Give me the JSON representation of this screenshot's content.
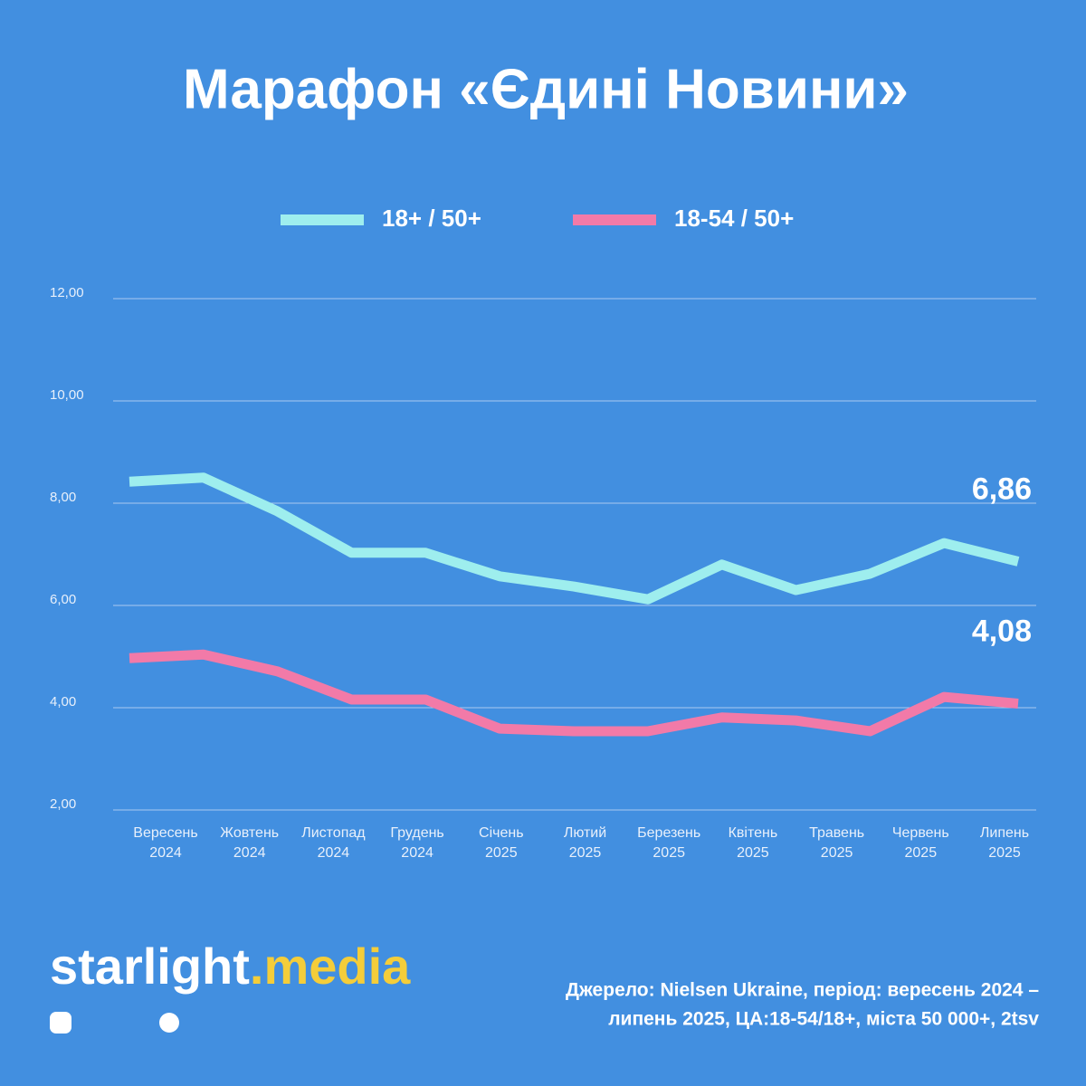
{
  "chart_data": {
    "type": "line",
    "title": "Марафон «Єдині Новини»",
    "categories": [
      [
        "Вересень",
        "2024"
      ],
      [
        "Жовтень",
        "2024"
      ],
      [
        "Листопад",
        "2024"
      ],
      null,
      [
        "Грудень",
        "2024"
      ],
      [
        "Січень",
        "2025"
      ],
      [
        "Лютий",
        "2025"
      ],
      [
        "Березень",
        "2025"
      ],
      [
        "Квітень",
        "2025"
      ],
      null,
      [
        "Травень",
        "2025"
      ],
      [
        "Червень",
        "2025"
      ],
      [
        "Липень",
        "2025"
      ]
    ],
    "series": [
      {
        "name": "18+ / 50+",
        "color": "#9eeeee",
        "values": [
          8.42,
          8.5,
          7.84,
          7.03,
          7.03,
          6.57,
          6.37,
          6.12,
          6.8,
          6.3,
          6.62,
          7.22,
          6.86
        ],
        "value_labels": [
          null,
          null,
          null,
          null,
          null,
          null,
          null,
          null,
          null,
          null,
          null,
          null,
          "6,86"
        ]
      },
      {
        "name": "18-54 / 50+",
        "color": "#f27aa8",
        "values": [
          4.97,
          5.04,
          4.71,
          4.16,
          4.16,
          3.59,
          3.54,
          3.54,
          3.81,
          3.75,
          3.54,
          4.21,
          4.08
        ],
        "value_labels": [
          null,
          null,
          null,
          null,
          null,
          null,
          null,
          null,
          null,
          null,
          null,
          null,
          "4,08"
        ]
      }
    ],
    "ylim": [
      2,
      12
    ],
    "yticks": [
      {
        "value": 2,
        "label": "2,00"
      },
      {
        "value": 4,
        "label": "4,00"
      },
      {
        "value": 6,
        "label": "6,00"
      },
      {
        "value": 8,
        "label": "8,00"
      },
      {
        "value": 10,
        "label": "10,00"
      },
      {
        "value": 12,
        "label": "12,00"
      }
    ],
    "grid": true
  },
  "footer": {
    "brand": "starlight",
    "brand_accent": ".media",
    "source": [
      "Джерело: Nielsen Ukraine, період: вересень 2024 –",
      "липень 2025, ЦА:18-54/18+, міста 50 000+, 2tsv"
    ]
  }
}
